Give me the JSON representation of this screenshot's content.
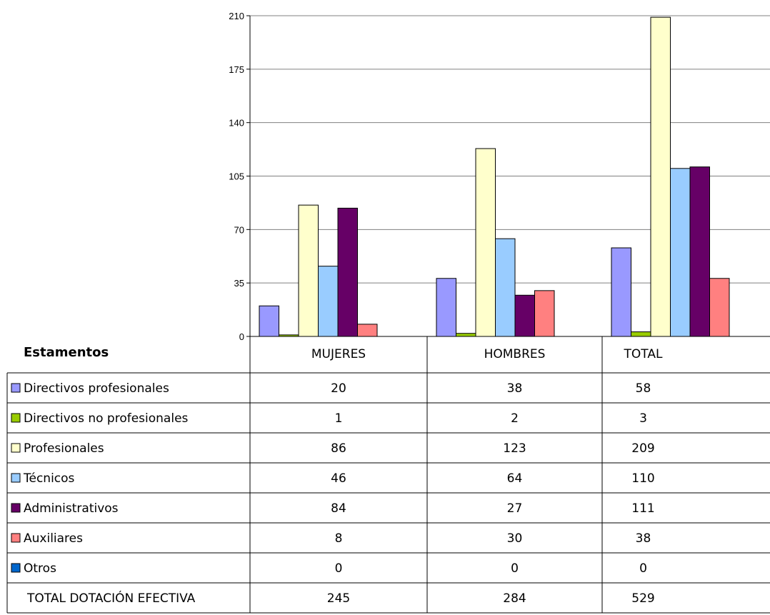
{
  "chart_data": {
    "type": "bar",
    "title": "",
    "row_header": "Estamentos",
    "categories": [
      "MUJERES",
      "HOMBRES",
      "TOTAL"
    ],
    "ylim": [
      0,
      210
    ],
    "yticks": [
      0,
      35,
      70,
      105,
      140,
      175,
      210
    ],
    "grid": true,
    "series": [
      {
        "name": "Directivos profesionales",
        "values": [
          20,
          38,
          58
        ],
        "color": "#9999ff"
      },
      {
        "name": "Directivos no profesionales",
        "values": [
          1,
          2,
          3
        ],
        "color": "#99cc00"
      },
      {
        "name": "Profesionales",
        "values": [
          86,
          123,
          209
        ],
        "color": "#ffffcc"
      },
      {
        "name": "Técnicos",
        "values": [
          46,
          64,
          110
        ],
        "color": "#99ccff"
      },
      {
        "name": "Administrativos",
        "values": [
          84,
          27,
          111
        ],
        "color": "#660066"
      },
      {
        "name": "Auxiliares",
        "values": [
          8,
          30,
          38
        ],
        "color": "#ff8080"
      },
      {
        "name": "Otros",
        "values": [
          0,
          0,
          0
        ],
        "color": "#0066cc"
      }
    ],
    "total_row": {
      "label": "TOTAL DOTACIÓN EFECTIVA",
      "values": [
        245,
        284,
        529
      ]
    }
  }
}
